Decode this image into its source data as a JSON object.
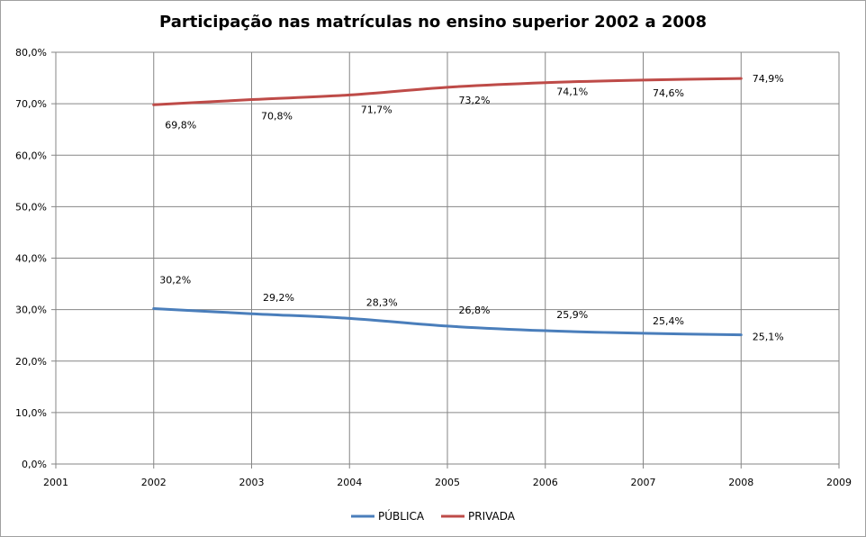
{
  "chart_data": {
    "type": "line",
    "title": "Participação nas matrículas no ensino superior 2002 a 2008",
    "xlabel": "",
    "ylabel": "",
    "x_ticks": [
      "2001",
      "2002",
      "2003",
      "2004",
      "2005",
      "2006",
      "2007",
      "2008",
      "2009"
    ],
    "xlim": [
      2001,
      2009
    ],
    "ylim": [
      0,
      80
    ],
    "y_ticks": [
      "0,0%",
      "10,0%",
      "20,0%",
      "30,0%",
      "40,0%",
      "50,0%",
      "60,0%",
      "70,0%",
      "80,0%"
    ],
    "grid": true,
    "legend_position": "bottom",
    "x": [
      2002,
      2003,
      2004,
      2005,
      2006,
      2007,
      2008
    ],
    "series": [
      {
        "name": "PÚBLICA",
        "color": "#4a7ebb",
        "values": [
          30.2,
          29.2,
          28.3,
          26.8,
          25.9,
          25.4,
          25.1
        ],
        "labels": [
          "30,2%",
          "29,2%",
          "28,3%",
          "26,8%",
          "25,9%",
          "25,4%",
          "25,1%"
        ]
      },
      {
        "name": "PRIVADA",
        "color": "#be4b48",
        "values": [
          69.8,
          70.8,
          71.7,
          73.2,
          74.1,
          74.6,
          74.9
        ],
        "labels": [
          "69,8%",
          "70,8%",
          "71,7%",
          "73,2%",
          "74,1%",
          "74,6%",
          "74,9%"
        ]
      }
    ]
  }
}
